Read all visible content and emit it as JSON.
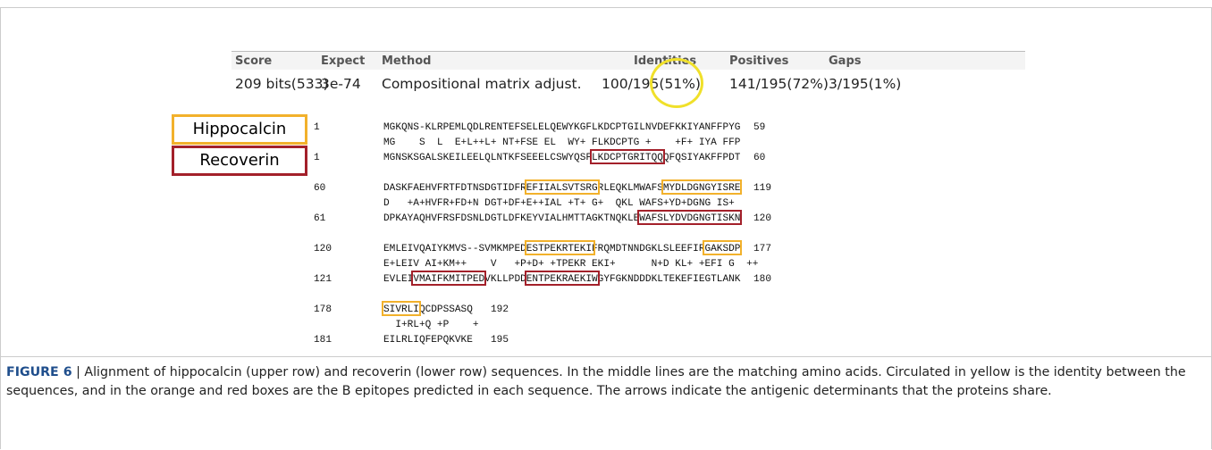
{
  "stats": {
    "headers": [
      "Score",
      "Expect",
      "Method",
      "Identities",
      "Positives",
      "Gaps"
    ],
    "values": [
      "209 bits(533)",
      "3e-74",
      "Compositional matrix adjust.",
      "100/195(51%)",
      "141/195(72%)",
      "3/195(1%)"
    ]
  },
  "labels": [
    "Hippocalcin",
    "Recoverin"
  ],
  "alignment": [
    {
      "query": {
        "start": 1,
        "seq": "MGKQNS-KLRPEMLQDLRENTEFSELELQEWYKGFLKDCPTGILNVDEFKKIYANFFPYG",
        "end": 59
      },
      "match": "MG    S  L  E+L++L+ NT+FSE EL  WY+ FLKDCPTG +    +F+ IYA FFP",
      "subject": {
        "start": 1,
        "seq": "MGNSKSGALSKEILEELQLNTKFSEEELCSWYQSFLKDCPTGRITQQQFQSIYAKFFPDT",
        "end": 60
      }
    },
    {
      "query": {
        "start": 60,
        "seq": "DASKFAEHVFRTFDTNSDGTIDFREFIIALSVTSRGRLEQKLMWAFSMYDLDGNGYISRE",
        "end": 119
      },
      "match": "D   +A+HVFR+FD+N DGT+DF+E++IAL +T+ G+  QKL WAFS+YD+DGNG IS+",
      "subject": {
        "start": 61,
        "seq": "DPKAYAQHVFRSFDSNLDGTLDFKEYVIALHMTTAGKTNQKLEWAFSLYDVDGNGTISKN",
        "end": 120
      }
    },
    {
      "query": {
        "start": 120,
        "seq": "EMLEIVQAIYKMVS--SVMKMPEDESTPEKRTEKIFRQMDTNNDGKLSLEEFIRGAKSDP",
        "end": 177
      },
      "match": "E+LEIV AI+KM++    V   +P+D+ +TPEKR EKI+      N+D KL+ +EFI G  ++",
      "subject": {
        "start": 121,
        "seq": "EVLEIVMAIFKMITPEDVKLLPDDENTPEKRAEKIWGYFGKNDDDKLTEKEFIEGTLANK",
        "end": 180
      }
    },
    {
      "query": {
        "start": 178,
        "seq": "SIVRLIQCDPSSASQ",
        "end": 192
      },
      "match": "  I+RL+Q +P    +",
      "subject": {
        "start": 181,
        "seq": "EILRLIQFEPQKVKE",
        "end": 195
      }
    }
  ],
  "caption": {
    "label": "FIGURE 6",
    "text": "| Alignment of hippocalcin (upper row) and recoverin (lower row) sequences. In the middle lines are the matching amino acids. Circulated in yellow is the identity between the sequences, and in the orange and red boxes are the B epitopes predicted in each sequence. The arrows indicate the antigenic determinants that the proteins share."
  }
}
